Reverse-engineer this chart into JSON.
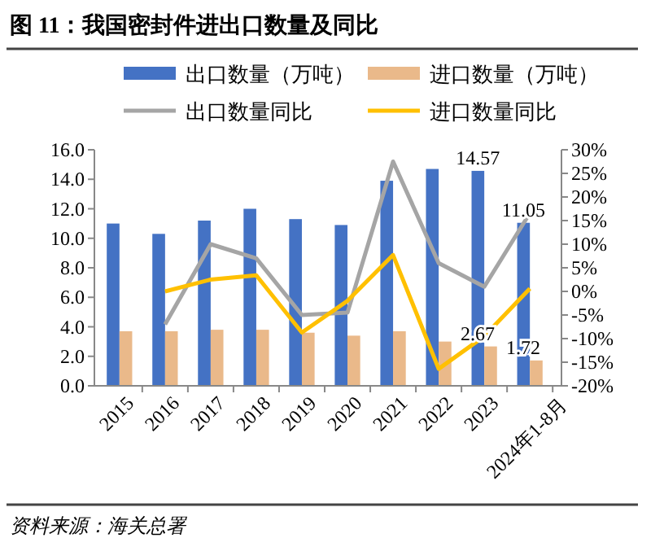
{
  "chart_data": {
    "type": "bar",
    "title": "图 11：我国密封件进出口数量及同比",
    "categories": [
      "2015",
      "2016",
      "2017",
      "2018",
      "2019",
      "2020",
      "2021",
      "2022",
      "2023",
      "2024年1-8月"
    ],
    "series": [
      {
        "name": "出口数量（万吨）",
        "color": "#4472c4",
        "values": [
          11.0,
          10.3,
          11.2,
          12.0,
          11.3,
          10.9,
          13.9,
          14.7,
          14.57,
          11.05
        ],
        "value_labels": [
          null,
          null,
          null,
          null,
          null,
          null,
          null,
          null,
          "14.57",
          "11.05"
        ]
      },
      {
        "name": "进口数量（万吨）",
        "color": "#eab98a",
        "values": [
          3.7,
          3.7,
          3.8,
          3.8,
          3.6,
          3.4,
          3.7,
          3.0,
          2.67,
          1.72
        ],
        "value_labels": [
          null,
          null,
          null,
          null,
          null,
          null,
          null,
          null,
          "2.67",
          "1.72"
        ]
      },
      {
        "name": "出口数量同比",
        "type": "line",
        "axis": "y2",
        "color": "#a5a5a5",
        "values": [
          null,
          -7,
          10,
          7,
          -5,
          -4.5,
          27.5,
          6,
          1,
          16.6
        ]
      },
      {
        "name": "进口数量同比",
        "type": "line",
        "axis": "y2",
        "color": "#ffc000",
        "values": [
          null,
          0,
          2.5,
          3.4,
          -8.7,
          -2,
          7.7,
          -16.4,
          -9.5,
          0.6
        ]
      }
    ],
    "ylim": [
      0,
      16
    ],
    "yticks": [
      {
        "value": 0,
        "label": "0.0"
      },
      {
        "value": 2,
        "label": "2.0"
      },
      {
        "value": 4,
        "label": "4.0"
      },
      {
        "value": 6,
        "label": "6.0"
      },
      {
        "value": 8,
        "label": "8.0"
      },
      {
        "value": 10,
        "label": "10.0"
      },
      {
        "value": 12,
        "label": "12.0"
      },
      {
        "value": 14,
        "label": "14.0"
      },
      {
        "value": 16,
        "label": "16.0"
      }
    ],
    "y2lim": [
      -20,
      30
    ],
    "y2ticks": [
      {
        "value": -20,
        "label": "-20%"
      },
      {
        "value": -15,
        "label": "-15%"
      },
      {
        "value": -10,
        "label": "-10%"
      },
      {
        "value": -5,
        "label": "-5%"
      },
      {
        "value": 0,
        "label": "0%"
      },
      {
        "value": 5,
        "label": "5%"
      },
      {
        "value": 10,
        "label": "10%"
      },
      {
        "value": 15,
        "label": "15%"
      },
      {
        "value": 20,
        "label": "20%"
      },
      {
        "value": 25,
        "label": "25%"
      },
      {
        "value": 30,
        "label": "30%"
      }
    ],
    "legend": "top",
    "grid": false,
    "marker": "none",
    "annotations": [
      "资料来源：海关总署"
    ]
  }
}
